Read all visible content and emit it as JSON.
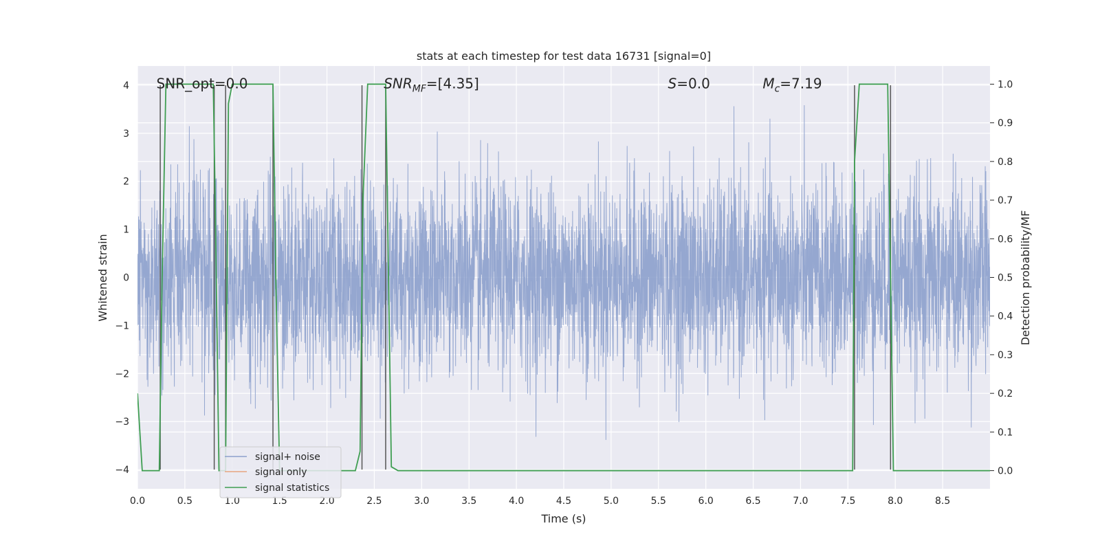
{
  "chart_data": {
    "type": "line",
    "title": "stats at each timestep for test data 16731 [signal=0]",
    "xlabel": "Time (s)",
    "ylabel": "Whitened strain",
    "y2label": "Detection probability/MF",
    "xlim": [
      0.0,
      9.0
    ],
    "ylim": [
      -4.4,
      4.4
    ],
    "y2lim": [
      -0.047,
      1.047
    ],
    "xticks": [
      0.0,
      0.5,
      1.0,
      1.5,
      2.0,
      2.5,
      3.0,
      3.5,
      4.0,
      4.5,
      5.0,
      5.5,
      6.0,
      6.5,
      7.0,
      7.5,
      8.0,
      8.5
    ],
    "xtick_labels": [
      "0.0",
      "0.5",
      "1.0",
      "1.5",
      "2.0",
      "2.5",
      "3.0",
      "3.5",
      "4.0",
      "4.5",
      "5.0",
      "5.5",
      "6.0",
      "6.5",
      "7.0",
      "7.5",
      "8.0",
      "8.5"
    ],
    "yticks": [
      -4,
      -3,
      -2,
      -1,
      0,
      1,
      2,
      3,
      4
    ],
    "ytick_labels": [
      "−4",
      "−3",
      "−2",
      "−1",
      "0",
      "1",
      "2",
      "3",
      "4"
    ],
    "y2ticks": [
      0.0,
      0.1,
      0.2,
      0.3,
      0.4,
      0.5,
      0.6,
      0.7,
      0.8,
      0.9,
      1.0
    ],
    "y2tick_labels": [
      "0.0",
      "0.1",
      "0.2",
      "0.3",
      "0.4",
      "0.5",
      "0.6",
      "0.7",
      "0.8",
      "0.9",
      "1.0"
    ],
    "grid": true,
    "legend_position": "lower-left",
    "annotations": [
      {
        "text": "SNR_opt=0.0",
        "x": 0.2,
        "y": 4.05
      },
      {
        "text": "SNR_MF=[4.35]",
        "x": 2.6,
        "y": 4.05
      },
      {
        "text": "S=0.0",
        "x": 5.6,
        "y": 4.05
      },
      {
        "text": "M_c=7.19",
        "x": 6.6,
        "y": 4.05
      }
    ],
    "series": [
      {
        "name": "signal+ noise",
        "axis": "left",
        "color": "#8ca0cc",
        "style": "noise",
        "amplitude_sigma": 1.0,
        "sample_count": 4096,
        "x_range": [
          0.0,
          9.0
        ]
      },
      {
        "name": "signal only",
        "axis": "left",
        "color": "#e8a580",
        "x": [],
        "y": []
      },
      {
        "name": "signal statistics",
        "axis": "right",
        "color": "#3f9e52",
        "x": [
          0.0,
          0.05,
          0.23,
          0.26,
          0.3,
          0.8,
          0.82,
          0.86,
          0.93,
          0.96,
          1.0,
          1.05,
          1.43,
          1.46,
          1.5,
          2.3,
          2.35,
          2.38,
          2.43,
          2.62,
          2.65,
          2.68,
          2.75,
          2.95,
          3.0,
          7.55,
          7.57,
          7.62,
          7.68,
          7.92,
          7.95,
          7.98,
          9.0
        ],
        "y": [
          0.2,
          0.0,
          0.0,
          0.5,
          1.0,
          1.0,
          0.7,
          0.0,
          0.0,
          0.95,
          1.0,
          1.0,
          1.0,
          0.5,
          0.0,
          0.0,
          0.05,
          0.7,
          1.0,
          1.0,
          0.5,
          0.01,
          0.0,
          0.0,
          0.0,
          0.0,
          0.8,
          1.0,
          1.0,
          1.0,
          0.5,
          0.0,
          0.0
        ]
      }
    ],
    "vlines": {
      "color": "#555555",
      "x": [
        0.24,
        0.81,
        0.93,
        1.43,
        2.37,
        2.62,
        7.57,
        7.95
      ],
      "y_range": [
        -4.0,
        4.0
      ]
    }
  }
}
